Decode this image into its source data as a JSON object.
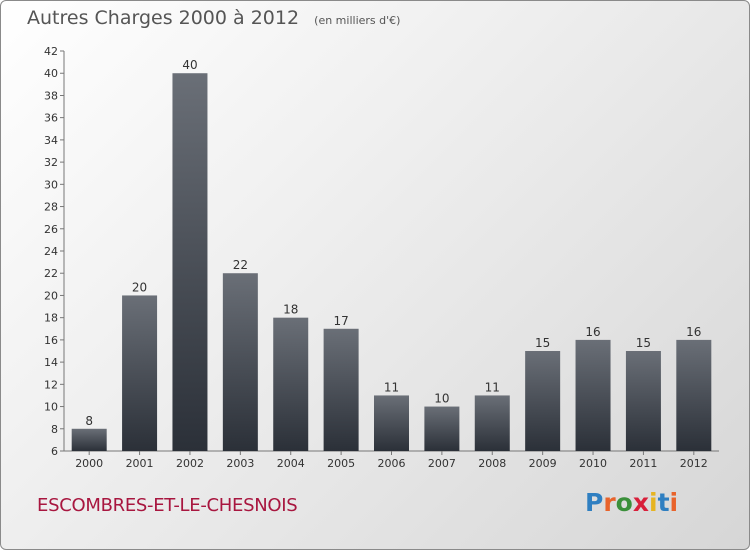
{
  "header": {
    "title": "Autres Charges 2000 à 2012",
    "subtitle": "(en milliers d'€)"
  },
  "footer": {
    "commune": "ESCOMBRES-ET-LE-CHESNOIS",
    "logo_text": "Proxiti",
    "logo_colors": [
      "#2f7fc1",
      "#e8632b",
      "#3a8f3a",
      "#d81f3a",
      "#e6b422",
      "#2f7fc1",
      "#e8632b"
    ]
  },
  "colors": {
    "bar_top": "#6a6f77",
    "bar_bottom": "#2b3038",
    "title": "#555555",
    "commune": "#a8163f"
  },
  "chart_data": {
    "type": "bar",
    "categories": [
      "2000",
      "2001",
      "2002",
      "2003",
      "2004",
      "2005",
      "2006",
      "2007",
      "2008",
      "2009",
      "2010",
      "2011",
      "2012"
    ],
    "values": [
      8,
      20,
      40,
      22,
      18,
      17,
      11,
      10,
      11,
      15,
      16,
      15,
      16
    ],
    "title": "Autres Charges 2000 à 2012",
    "subtitle": "(en milliers d'€)",
    "ylim": [
      6,
      42
    ],
    "yticks": [
      6,
      8,
      10,
      12,
      14,
      16,
      18,
      20,
      22,
      24,
      26,
      28,
      30,
      32,
      34,
      36,
      38,
      40,
      42
    ],
    "grid": false,
    "data_labels": true
  }
}
